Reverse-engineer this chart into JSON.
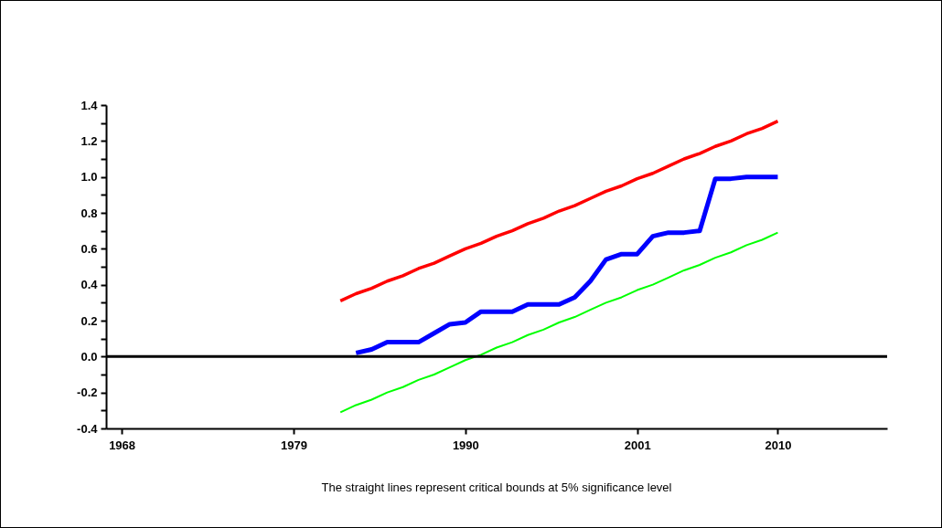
{
  "chart_data": {
    "type": "line",
    "annotations": [
      "The straight lines represent critical bounds at 5% significance level"
    ],
    "x": [
      1982,
      1983,
      1984,
      1985,
      1986,
      1987,
      1988,
      1989,
      1990,
      1991,
      1992,
      1993,
      1994,
      1995,
      1996,
      1997,
      1998,
      1999,
      2000,
      2001,
      2002,
      2003,
      2004,
      2005,
      2006,
      2007,
      2008,
      2009,
      2010
    ],
    "series": [
      {
        "color": "#ff0000",
        "values": [
          0.31,
          0.35,
          0.38,
          0.42,
          0.45,
          0.49,
          0.52,
          0.56,
          0.6,
          0.63,
          0.67,
          0.7,
          0.74,
          0.77,
          0.81,
          0.84,
          0.88,
          0.92,
          0.95,
          0.99,
          1.02,
          1.06,
          1.1,
          1.13,
          1.17,
          1.2,
          1.24,
          1.27,
          1.31
        ]
      },
      {
        "color": "#0000ff",
        "values": [
          null,
          0.02,
          0.04,
          0.08,
          0.08,
          0.08,
          0.13,
          0.18,
          0.19,
          0.25,
          0.25,
          0.25,
          0.29,
          0.29,
          0.29,
          0.33,
          0.42,
          0.54,
          0.57,
          0.57,
          0.67,
          0.69,
          0.69,
          0.7,
          0.99,
          0.99,
          1.0,
          1.0,
          1.0
        ]
      },
      {
        "color": "#00ff00",
        "values": [
          -0.31,
          -0.27,
          -0.24,
          -0.2,
          -0.17,
          -0.13,
          -0.1,
          -0.06,
          -0.02,
          0.01,
          0.05,
          0.08,
          0.12,
          0.15,
          0.19,
          0.22,
          0.26,
          0.3,
          0.33,
          0.37,
          0.4,
          0.44,
          0.48,
          0.51,
          0.55,
          0.58,
          0.62,
          0.65,
          0.69
        ]
      }
    ],
    "xlim": [
      1967,
      2017
    ],
    "xticks": [
      1968,
      1979,
      1990,
      2001,
      2010
    ],
    "ylim": [
      -0.4,
      1.4
    ],
    "yticks": [
      {
        "value": -0.4,
        "label": "-0.4"
      },
      {
        "value": -0.3,
        "label": null
      },
      {
        "value": -0.2,
        "label": "-0.2"
      },
      {
        "value": -0.1,
        "label": null
      },
      {
        "value": 0,
        "label": "0.0"
      },
      {
        "value": 0.1,
        "label": null
      },
      {
        "value": 0.2,
        "label": "0.2"
      },
      {
        "value": 0.3,
        "label": null
      },
      {
        "value": 0.4,
        "label": "0.4"
      },
      {
        "value": 0.5,
        "label": null
      },
      {
        "value": 0.6,
        "label": "0.6"
      },
      {
        "value": 0.7,
        "label": null
      },
      {
        "value": 0.8,
        "label": "0.8"
      },
      {
        "value": 0.9,
        "label": null
      },
      {
        "value": 1.0,
        "label": "1.0"
      },
      {
        "value": 1.1,
        "label": null
      },
      {
        "value": 1.2,
        "label": "1.2"
      },
      {
        "value": 1.3,
        "label": null
      },
      {
        "value": 1.4,
        "label": "1.4"
      }
    ],
    "ref_lines": [
      {
        "axis": "y",
        "value": 0,
        "color": "#000000"
      }
    ]
  }
}
